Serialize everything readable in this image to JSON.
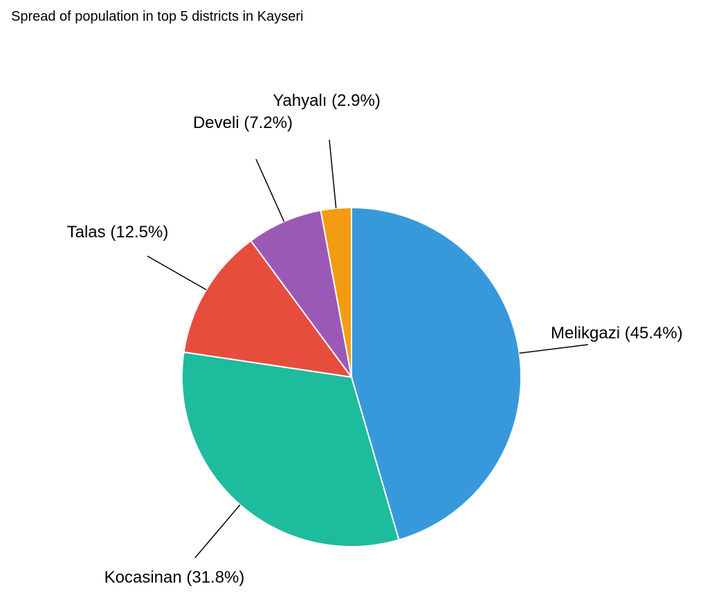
{
  "chart_data": {
    "type": "pie",
    "title": "Spread of population in top 5 districts in Kayseri",
    "start_angle_deg": 0,
    "direction": "clockwise",
    "slices": [
      {
        "label": "Melikgazi",
        "percent": 45.4,
        "display": "Melikgazi (45.4%)",
        "color": "#3799db"
      },
      {
        "label": "Kocasinan",
        "percent": 31.8,
        "display": "Kocasinan (31.8%)",
        "color": "#1dbc9c"
      },
      {
        "label": "Talas",
        "percent": 12.5,
        "display": "Talas (12.5%)",
        "color": "#e74d3c"
      },
      {
        "label": "Develi",
        "percent": 7.2,
        "display": "Develi (7.2%)",
        "color": "#9b59b6"
      },
      {
        "label": "Yahyalı",
        "percent": 2.9,
        "display": "Yahyalı (2.9%)",
        "color": "#f39c11"
      }
    ]
  }
}
